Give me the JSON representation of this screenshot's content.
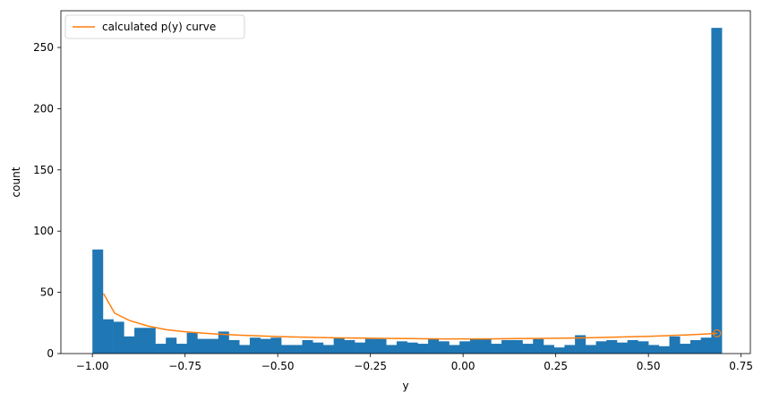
{
  "chart_data": {
    "type": "bar",
    "xlabel": "y",
    "ylabel": "count",
    "xlim": [
      -1.085,
      0.775
    ],
    "ylim": [
      0,
      280
    ],
    "x_ticks": [
      -1.0,
      -0.75,
      -0.5,
      -0.25,
      0.0,
      0.25,
      0.5,
      0.75
    ],
    "x_tick_labels": [
      "−1.00",
      "−0.75",
      "−0.50",
      "−0.25",
      "0.00",
      "0.25",
      "0.50",
      "0.75"
    ],
    "y_ticks": [
      0,
      50,
      100,
      150,
      200,
      250
    ],
    "y_tick_labels": [
      "0",
      "50",
      "100",
      "150",
      "200",
      "250"
    ],
    "grid": false,
    "legend_position": "top-left",
    "colors": {
      "histogram": "#1f77b4",
      "curve": "#ff7f0e"
    },
    "histogram": {
      "bin_start": -1.0,
      "bin_width": 0.0283,
      "counts": [
        85,
        28,
        26,
        14,
        21,
        21,
        8,
        13,
        8,
        17,
        12,
        12,
        18,
        11,
        7,
        13,
        12,
        13,
        7,
        7,
        11,
        9,
        7,
        13,
        11,
        9,
        12,
        12,
        7,
        10,
        9,
        8,
        12,
        10,
        7,
        10,
        12,
        12,
        8,
        11,
        11,
        8,
        12,
        7,
        5,
        7,
        15,
        7,
        10,
        11,
        9,
        11,
        10,
        7,
        6,
        14,
        8,
        11,
        13,
        266
      ]
    },
    "series": [
      {
        "name": "calculated p(y) curve",
        "x": [
          -0.97,
          -0.94,
          -0.9,
          -0.85,
          -0.8,
          -0.75,
          -0.7,
          -0.65,
          -0.6,
          -0.55,
          -0.5,
          -0.45,
          -0.4,
          -0.35,
          -0.3,
          -0.25,
          -0.2,
          -0.15,
          -0.1,
          -0.05,
          0.0,
          0.05,
          0.1,
          0.15,
          0.2,
          0.25,
          0.3,
          0.35,
          0.4,
          0.45,
          0.5,
          0.55,
          0.6,
          0.65,
          0.685
        ],
        "y": [
          49,
          33,
          27,
          22.5,
          19.5,
          17.8,
          16.6,
          15.7,
          15.0,
          14.4,
          13.9,
          13.5,
          13.2,
          12.9,
          12.7,
          12.5,
          12.3,
          12.2,
          12.1,
          12.0,
          12.0,
          12.0,
          12.1,
          12.2,
          12.3,
          12.5,
          12.7,
          13.0,
          13.3,
          13.7,
          14.1,
          14.6,
          15.2,
          15.9,
          16.5
        ]
      }
    ],
    "marker": {
      "x": 0.685,
      "y": 16.5
    }
  }
}
